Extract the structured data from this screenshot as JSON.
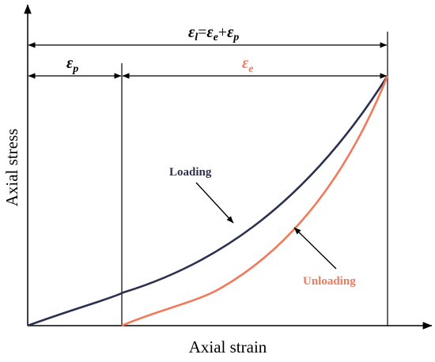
{
  "axes": {
    "x_label": "Axial strain",
    "y_label": "Axial stress"
  },
  "annotations": {
    "total_strain": {
      "symbol": "ε",
      "sub_total": "l",
      "equals": "=",
      "sub_e": "e",
      "plus": "+",
      "sub_p": "p"
    },
    "plastic_strain": {
      "symbol": "ε",
      "sub": "p"
    },
    "elastic_strain": {
      "symbol": "ε",
      "sub": "e"
    }
  },
  "curves": {
    "loading": {
      "label": "Loading",
      "color": "#2b3050"
    },
    "unloading": {
      "label": "Unloading",
      "color": "#f07a5c"
    }
  },
  "colors": {
    "axis": "#000000",
    "elastic_label": "#f07a5c"
  }
}
